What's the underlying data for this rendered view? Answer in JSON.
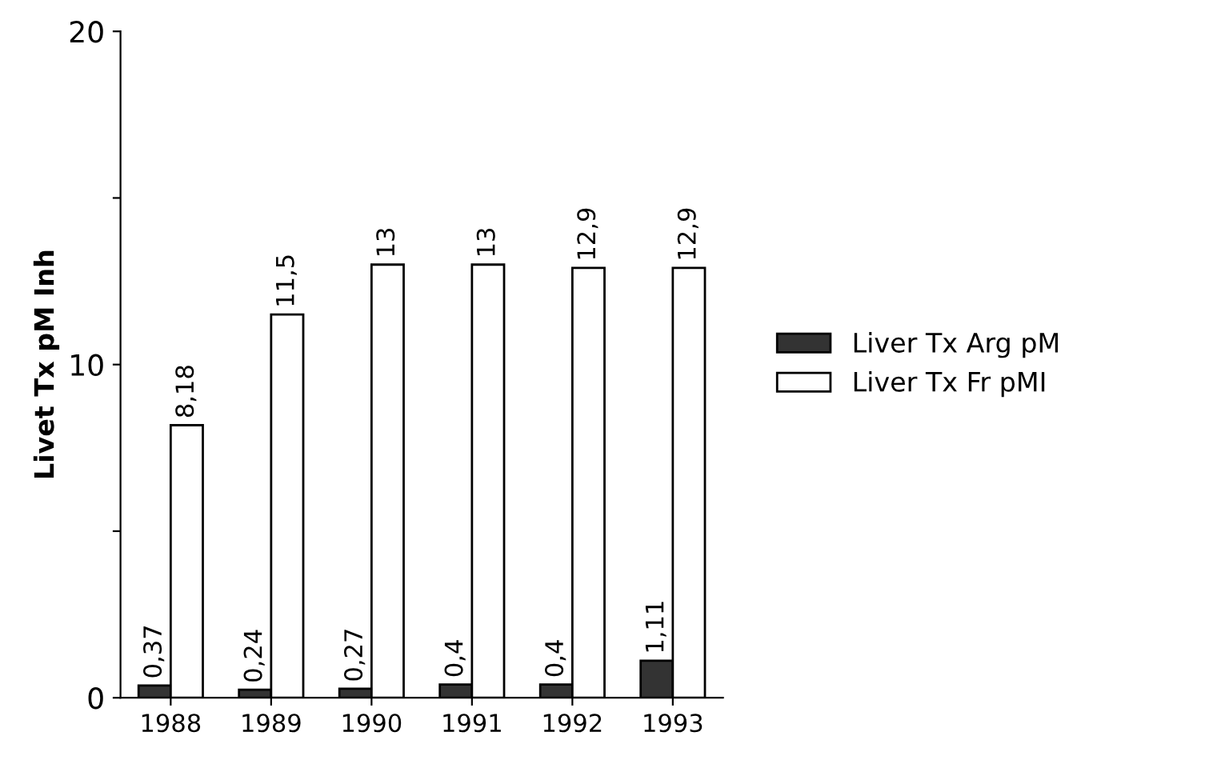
{
  "chart_data": {
    "type": "bar",
    "ylabel": "Livet Tx pM Inh",
    "categories": [
      "1988",
      "1989",
      "1990",
      "1991",
      "1992",
      "1993"
    ],
    "series": [
      {
        "name": "Liver Tx Arg pM",
        "color": "#333333",
        "values": [
          0.37,
          0.24,
          0.27,
          0.4,
          0.4,
          1.11
        ],
        "value_labels": [
          "0,37",
          "0,24",
          "0,27",
          "0,4",
          "0,4",
          "1,11"
        ]
      },
      {
        "name": "Liver Tx Fr pMI",
        "color": "#ffffff",
        "values": [
          8.18,
          11.5,
          13,
          13,
          12.9,
          12.9
        ],
        "value_labels": [
          "8,18",
          "11,5",
          "13",
          "13",
          "12,9",
          "12,9"
        ]
      }
    ],
    "ylim": [
      0,
      20
    ],
    "yticks": [
      0,
      {
        "value": 5,
        "label": null
      },
      10,
      {
        "value": 15,
        "label": null
      },
      20
    ],
    "legend": "right",
    "grid": false
  }
}
